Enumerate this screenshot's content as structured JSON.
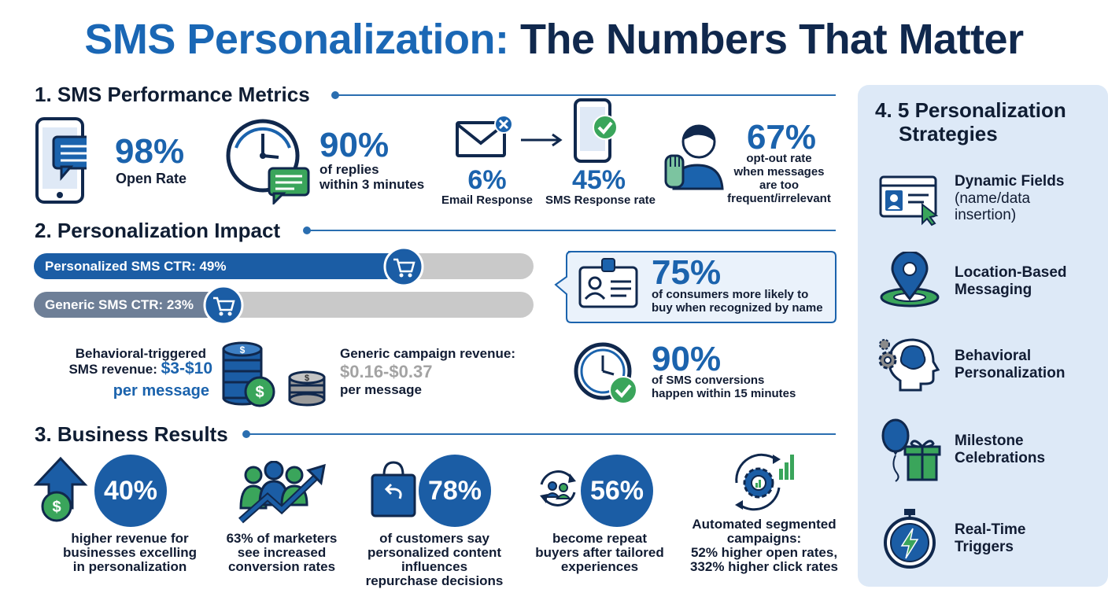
{
  "title": {
    "part1": "SMS Personalization:",
    "part2": "The Numbers That Matter"
  },
  "sections": {
    "metrics": "1. SMS Performance Metrics",
    "impact": "2. Personalization Impact",
    "results": "3. Business Results",
    "strategies": "4. 5 Personalization Strategies"
  },
  "metrics": {
    "open_rate": {
      "value": "98%",
      "label": "Open Rate"
    },
    "replies": {
      "value": "90%",
      "label_line1": "of replies",
      "label_line2": "within 3 minutes"
    },
    "email": {
      "value": "6%",
      "label": "Email Response"
    },
    "sms": {
      "value": "45%",
      "label": "SMS Response rate"
    },
    "optout": {
      "value": "67%",
      "line1": "opt-out rate",
      "line2": "when messages",
      "line3": "are too",
      "line4": "frequent/irrelevant"
    }
  },
  "impact": {
    "personalized_ctr": {
      "label": "Personalized SMS CTR: 49%",
      "value": 0.49
    },
    "generic_ctr": {
      "label": "Generic SMS CTR: 23%",
      "value": 0.23
    },
    "behavioral": {
      "line1": "Behavioral-triggered",
      "line2a": "SMS revenue: ",
      "line2b": "$3-$10",
      "line3": "per message"
    },
    "generic_rev": {
      "line1": "Generic campaign revenue:",
      "value": "$0.16-$0.37",
      "line3": "per message"
    },
    "recognized": {
      "value": "75%",
      "line1": "of consumers more likely to",
      "line2": "buy when recognized by name"
    },
    "conversions": {
      "value": "90%",
      "line1": "of SMS conversions",
      "line2": "happen within 15 minutes"
    }
  },
  "results": {
    "revenue": {
      "value": "40%",
      "line1": "higher revenue for",
      "line2": "businesses excelling",
      "line3": "in personalization"
    },
    "marketers": {
      "line1": "63% of marketers",
      "line2": "see increased",
      "line3": "conversion rates"
    },
    "customers": {
      "value": "78%",
      "line1": "of customers say",
      "line2": "personalized content",
      "line3": "influences",
      "line4": "repurchase decisions"
    },
    "repeat": {
      "value": "56%",
      "line1": "become repeat",
      "line2": "buyers after tailored",
      "line3": "experiences"
    },
    "automated": {
      "line1": "Automated segmented",
      "line2": "campaigns:",
      "line3": "52% higher open rates,",
      "line4": "332% higher click rates"
    }
  },
  "strategies": {
    "heading_line1": "4. 5 Personalization",
    "heading_line2": "Strategies",
    "items": [
      {
        "line1": "Dynamic Fields",
        "sub1": "(name/data",
        "sub2": "insertion)"
      },
      {
        "line1": "Location-Based",
        "line2": "Messaging"
      },
      {
        "line1": "Behavioral",
        "line2": "Personalization"
      },
      {
        "line1": "Milestone",
        "line2": "Celebrations"
      },
      {
        "line1": "Real-Time",
        "line2": "Triggers"
      }
    ]
  },
  "colors": {
    "blue": "#1b63ad",
    "navy": "#10284d",
    "green": "#3aa55b",
    "panel": "#dde9f7",
    "gray": "#a3a3a3"
  }
}
